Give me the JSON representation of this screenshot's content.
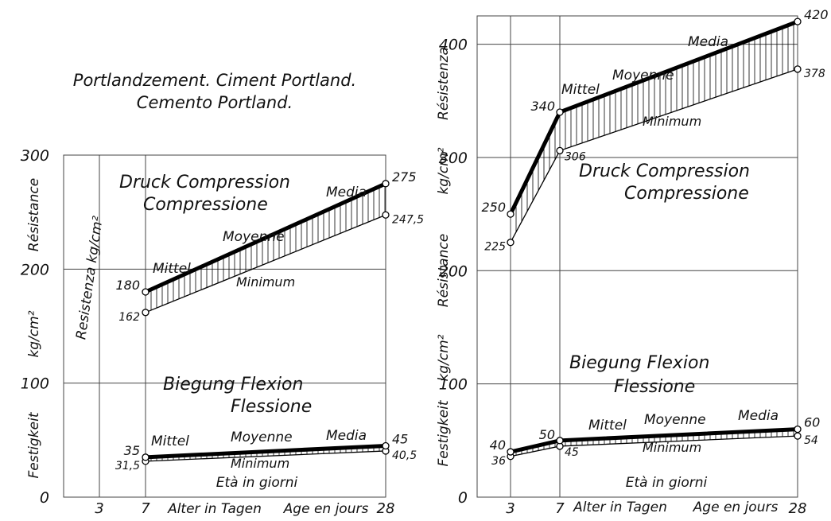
{
  "figure_title": [
    "Portlandzement.  Ciment Portland.",
    "Cemento Portland."
  ],
  "chart_data": [
    {
      "type": "line",
      "x": [
        7,
        28
      ],
      "xticks": [
        "3",
        "7",
        "28"
      ],
      "xlim": [
        0,
        28
      ],
      "ylim": [
        0,
        300
      ],
      "yticks": [
        "0",
        "100",
        "200",
        "300"
      ],
      "xlabel_parts": [
        "Alter in Tagen",
        "Age en jours"
      ],
      "xlabel_it": "Età in giorni",
      "ylabel_parts": [
        "Festigkeit",
        "kg/cm²",
        "Résistance"
      ],
      "ylabel_inner": "Resistenza  kg/cm²",
      "groups": [
        {
          "title_lines": [
            "Druck  Compression",
            "Compressione"
          ],
          "series": [
            {
              "name": "Mittel  Moyenne  Media",
              "label_parts": [
                "Mittel",
                "Moyenne",
                "Media"
              ],
              "values": [
                180,
                275
              ],
              "point_labels": [
                "180",
                "275"
              ]
            },
            {
              "name": "Minimum",
              "values": [
                162,
                247.5
              ],
              "point_labels": [
                "162",
                "247,5"
              ]
            }
          ]
        },
        {
          "title_lines": [
            "Biegung          Flexion",
            "Flessione"
          ],
          "series": [
            {
              "name": "Mittel  Moyenne  Media",
              "label_parts": [
                "Mittel",
                "Moyenne",
                "Media"
              ],
              "values": [
                35,
                45
              ],
              "point_labels": [
                "35",
                "45"
              ]
            },
            {
              "name": "Minimum",
              "values": [
                31.5,
                40.5
              ],
              "point_labels": [
                "31,5",
                "40,5"
              ]
            }
          ]
        }
      ]
    },
    {
      "type": "line",
      "x": [
        3,
        7,
        28
      ],
      "xticks": [
        "3",
        "7",
        "28"
      ],
      "xlim": [
        0,
        28
      ],
      "ylim": [
        0,
        420
      ],
      "yticks": [
        "0",
        "100",
        "200",
        "300",
        "400"
      ],
      "xlabel_parts": [
        "Alter in Tagen",
        "Age en jours"
      ],
      "xlabel_it": "Età in giorni",
      "ylabel_parts": [
        "Festigkeit",
        "kg/cm²",
        "Résistance",
        "kg/cm²",
        "Résistenza"
      ],
      "groups": [
        {
          "title_lines": [
            "Druck      Compression",
            "Compressione"
          ],
          "series": [
            {
              "name": "Mittel  Moyenne  Media",
              "label_parts": [
                "Mittel",
                "Moyenne",
                "Media"
              ],
              "values": [
                250,
                340,
                420
              ],
              "point_labels": [
                "250",
                "340",
                "420"
              ]
            },
            {
              "name": "Minimum",
              "values": [
                225,
                306,
                378
              ],
              "point_labels": [
                "225",
                "306",
                "378"
              ]
            }
          ]
        },
        {
          "title_lines": [
            "Biegung        Flexion",
            "Flessione"
          ],
          "series": [
            {
              "name": "Mittel  Moyenne  Media",
              "label_parts": [
                "Mittel",
                "Moyenne",
                "Media"
              ],
              "values": [
                40,
                50,
                60
              ],
              "point_labels": [
                "40",
                "50",
                "60"
              ]
            },
            {
              "name": "Minimum",
              "values": [
                36,
                45,
                54
              ],
              "point_labels": [
                "36",
                "45",
                "54"
              ]
            }
          ]
        }
      ]
    }
  ]
}
